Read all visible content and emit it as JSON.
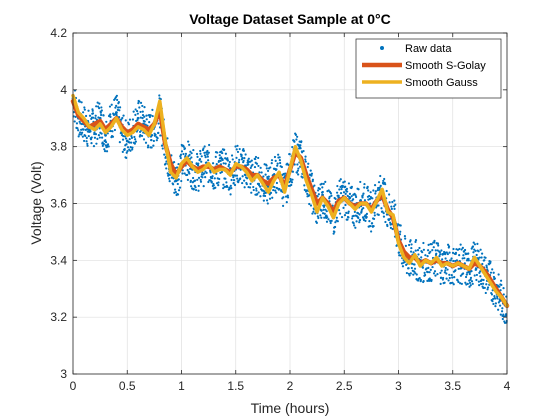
{
  "chart_data": {
    "type": "line",
    "title": "Voltage Dataset Sample at 0°C",
    "xlabel": "Time (hours)",
    "ylabel": "Voltage (Volt)",
    "xlim": [
      0,
      4
    ],
    "ylim": [
      3,
      4.2
    ],
    "xticks": [
      0,
      0.5,
      1,
      1.5,
      2,
      2.5,
      3,
      3.5,
      4
    ],
    "xtick_labels": [
      "0",
      "0.5",
      "1",
      "1.5",
      "2",
      "2.5",
      "3",
      "3.5",
      "4"
    ],
    "yticks": [
      3,
      3.2,
      3.4,
      3.6,
      3.8,
      4,
      4.2
    ],
    "ytick_labels": [
      "3",
      "3.2",
      "3.4",
      "3.6",
      "3.8",
      "4",
      "4.2"
    ],
    "grid": true,
    "legend_position": "top-right",
    "series": [
      {
        "name": "Raw data",
        "style": "markers",
        "color": "#0072BD",
        "x": [
          0.0,
          0.05,
          0.1,
          0.15,
          0.2,
          0.25,
          0.3,
          0.35,
          0.4,
          0.45,
          0.5,
          0.55,
          0.6,
          0.65,
          0.7,
          0.75,
          0.8,
          0.85,
          0.9,
          0.95,
          1.0,
          1.05,
          1.1,
          1.15,
          1.2,
          1.25,
          1.3,
          1.35,
          1.4,
          1.45,
          1.5,
          1.55,
          1.6,
          1.65,
          1.7,
          1.75,
          1.8,
          1.85,
          1.9,
          1.95,
          2.0,
          2.05,
          2.1,
          2.15,
          2.2,
          2.25,
          2.3,
          2.35,
          2.4,
          2.45,
          2.5,
          2.55,
          2.6,
          2.65,
          2.7,
          2.75,
          2.8,
          2.85,
          2.9,
          2.95,
          3.0,
          3.05,
          3.1,
          3.15,
          3.2,
          3.25,
          3.3,
          3.35,
          3.4,
          3.45,
          3.5,
          3.55,
          3.6,
          3.65,
          3.7,
          3.75,
          3.8,
          3.85,
          3.9,
          3.95,
          4.0
        ],
        "y": [
          3.97,
          3.9,
          3.88,
          3.86,
          3.87,
          3.9,
          3.84,
          3.89,
          3.92,
          3.85,
          3.82,
          3.86,
          3.9,
          3.88,
          3.85,
          3.87,
          3.92,
          3.8,
          3.72,
          3.68,
          3.74,
          3.76,
          3.72,
          3.71,
          3.73,
          3.74,
          3.71,
          3.73,
          3.72,
          3.7,
          3.74,
          3.73,
          3.72,
          3.69,
          3.7,
          3.68,
          3.66,
          3.7,
          3.71,
          3.64,
          3.72,
          3.78,
          3.76,
          3.7,
          3.64,
          3.58,
          3.63,
          3.59,
          3.55,
          3.62,
          3.62,
          3.6,
          3.58,
          3.61,
          3.6,
          3.57,
          3.62,
          3.64,
          3.58,
          3.56,
          3.48,
          3.42,
          3.4,
          3.41,
          3.38,
          3.4,
          3.39,
          3.41,
          3.38,
          3.39,
          3.38,
          3.39,
          3.38,
          3.36,
          3.4,
          3.38,
          3.35,
          3.33,
          3.3,
          3.26,
          3.24
        ]
      },
      {
        "name": "Smooth S-Golay",
        "style": "line",
        "color": "#D95319",
        "x": [
          0.0,
          0.05,
          0.1,
          0.15,
          0.2,
          0.25,
          0.3,
          0.35,
          0.4,
          0.45,
          0.5,
          0.55,
          0.6,
          0.65,
          0.7,
          0.75,
          0.8,
          0.85,
          0.9,
          0.95,
          1.0,
          1.05,
          1.1,
          1.15,
          1.2,
          1.25,
          1.3,
          1.35,
          1.4,
          1.45,
          1.5,
          1.55,
          1.6,
          1.65,
          1.7,
          1.75,
          1.8,
          1.85,
          1.9,
          1.95,
          2.0,
          2.05,
          2.1,
          2.15,
          2.2,
          2.25,
          2.3,
          2.35,
          2.4,
          2.45,
          2.5,
          2.55,
          2.6,
          2.65,
          2.7,
          2.75,
          2.8,
          2.85,
          2.9,
          2.95,
          3.0,
          3.05,
          3.1,
          3.15,
          3.2,
          3.25,
          3.3,
          3.35,
          3.4,
          3.45,
          3.5,
          3.55,
          3.6,
          3.65,
          3.7,
          3.75,
          3.8,
          3.85,
          3.9,
          3.95,
          4.0
        ],
        "y": [
          3.96,
          3.91,
          3.89,
          3.87,
          3.88,
          3.89,
          3.86,
          3.88,
          3.9,
          3.87,
          3.85,
          3.86,
          3.88,
          3.87,
          3.86,
          3.88,
          3.93,
          3.81,
          3.74,
          3.7,
          3.73,
          3.75,
          3.73,
          3.72,
          3.73,
          3.73,
          3.72,
          3.73,
          3.72,
          3.71,
          3.73,
          3.73,
          3.72,
          3.7,
          3.7,
          3.68,
          3.67,
          3.69,
          3.7,
          3.66,
          3.72,
          3.78,
          3.76,
          3.7,
          3.65,
          3.6,
          3.62,
          3.6,
          3.57,
          3.61,
          3.62,
          3.6,
          3.59,
          3.6,
          3.6,
          3.58,
          3.61,
          3.63,
          3.58,
          3.55,
          3.47,
          3.43,
          3.41,
          3.41,
          3.39,
          3.4,
          3.39,
          3.4,
          3.39,
          3.39,
          3.38,
          3.39,
          3.38,
          3.37,
          3.39,
          3.38,
          3.36,
          3.33,
          3.3,
          3.27,
          3.24
        ]
      },
      {
        "name": "Smooth Gauss",
        "style": "line",
        "color": "#EDB120",
        "x": [
          0.0,
          0.05,
          0.1,
          0.15,
          0.2,
          0.25,
          0.3,
          0.35,
          0.4,
          0.45,
          0.5,
          0.55,
          0.6,
          0.65,
          0.7,
          0.75,
          0.8,
          0.85,
          0.9,
          0.95,
          1.0,
          1.05,
          1.1,
          1.15,
          1.2,
          1.25,
          1.3,
          1.35,
          1.4,
          1.45,
          1.5,
          1.55,
          1.6,
          1.65,
          1.7,
          1.75,
          1.8,
          1.85,
          1.9,
          1.95,
          2.0,
          2.05,
          2.1,
          2.15,
          2.2,
          2.25,
          2.3,
          2.35,
          2.4,
          2.45,
          2.5,
          2.55,
          2.6,
          2.65,
          2.7,
          2.75,
          2.8,
          2.85,
          2.9,
          2.95,
          3.0,
          3.05,
          3.1,
          3.15,
          3.2,
          3.25,
          3.3,
          3.35,
          3.4,
          3.45,
          3.5,
          3.55,
          3.6,
          3.65,
          3.7,
          3.75,
          3.8,
          3.85,
          3.9,
          3.95,
          4.0
        ],
        "y": [
          3.98,
          3.92,
          3.9,
          3.87,
          3.86,
          3.88,
          3.85,
          3.87,
          3.9,
          3.86,
          3.84,
          3.85,
          3.87,
          3.86,
          3.84,
          3.88,
          3.96,
          3.82,
          3.71,
          3.69,
          3.74,
          3.76,
          3.73,
          3.71,
          3.72,
          3.74,
          3.71,
          3.72,
          3.72,
          3.7,
          3.74,
          3.73,
          3.71,
          3.68,
          3.7,
          3.67,
          3.64,
          3.68,
          3.71,
          3.64,
          3.72,
          3.8,
          3.75,
          3.68,
          3.63,
          3.57,
          3.62,
          3.59,
          3.55,
          3.6,
          3.62,
          3.6,
          3.58,
          3.6,
          3.6,
          3.57,
          3.61,
          3.65,
          3.57,
          3.56,
          3.46,
          3.41,
          3.39,
          3.42,
          3.38,
          3.4,
          3.39,
          3.41,
          3.38,
          3.39,
          3.38,
          3.39,
          3.38,
          3.37,
          3.41,
          3.38,
          3.35,
          3.32,
          3.29,
          3.27,
          3.24
        ]
      }
    ]
  }
}
